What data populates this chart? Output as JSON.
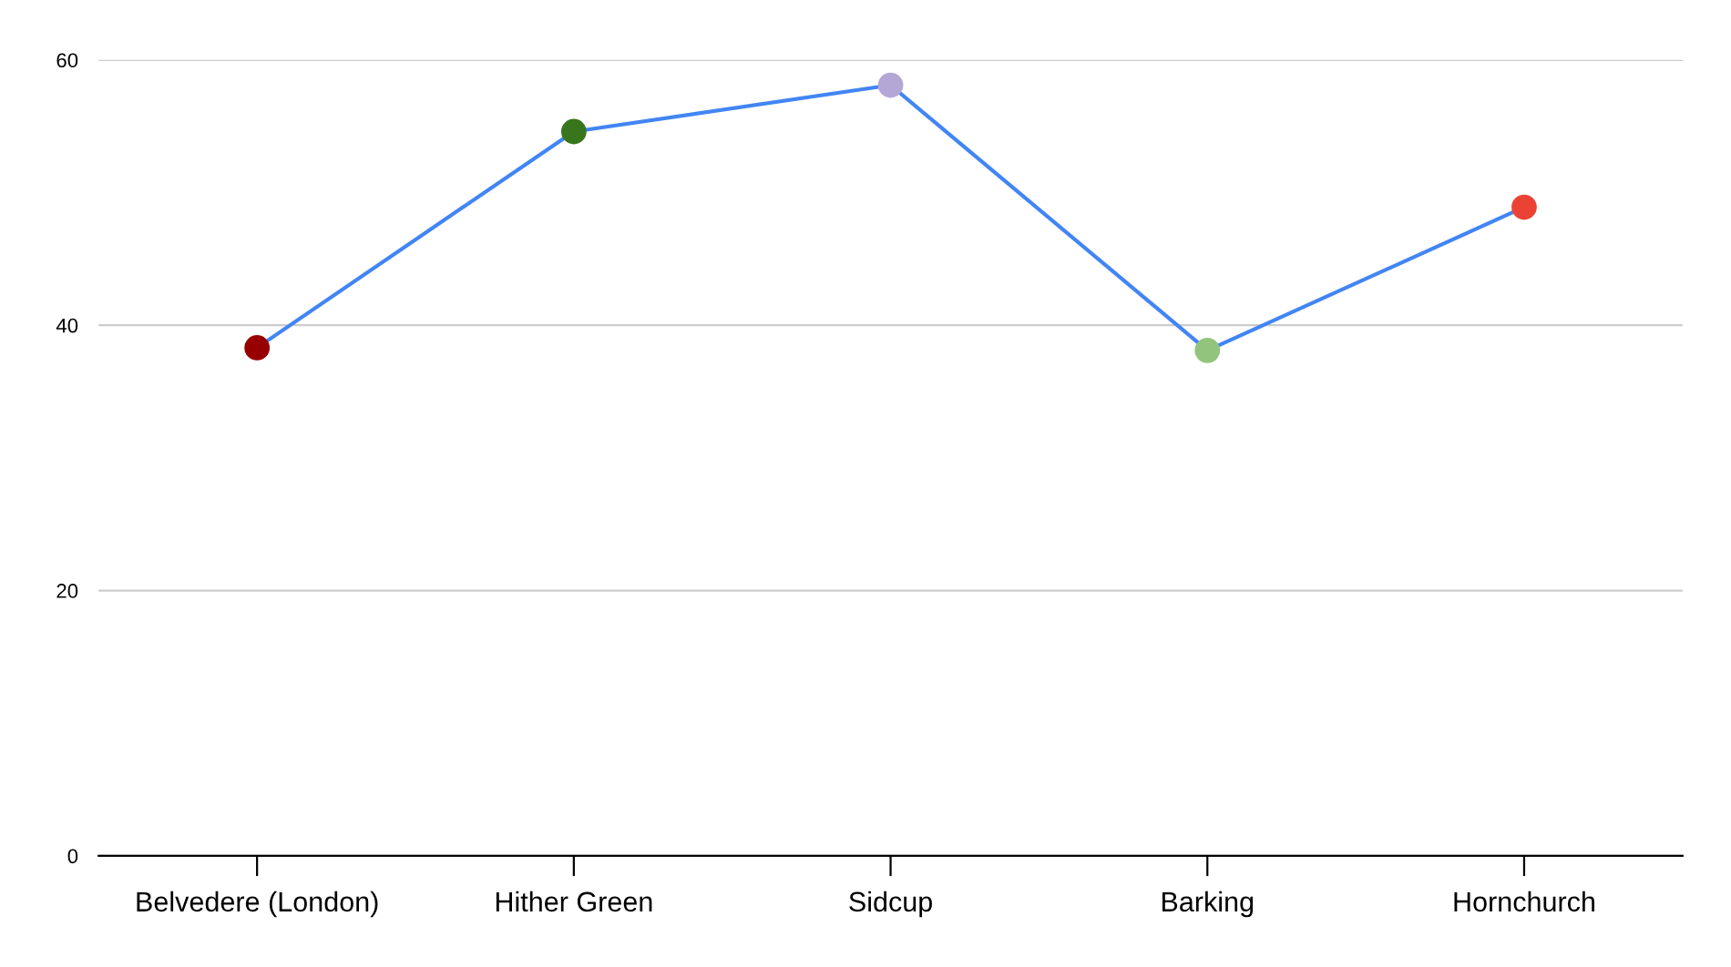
{
  "chart_data": {
    "type": "line",
    "categories": [
      "Belvedere (London)",
      "Hither Green",
      "Sidcup",
      "Barking",
      "Hornchurch"
    ],
    "series": [
      {
        "color": "#4285f4",
        "colors": [
          "#980000",
          "#38761d",
          "#b4a7d6",
          "#93c47d",
          "#ea4335"
        ],
        "values": [
          38.3,
          54.6,
          58.1,
          38.1,
          48.9
        ]
      }
    ],
    "ylim": [
      0,
      60
    ],
    "yticks": [
      0,
      20,
      40,
      60
    ],
    "grid": "y",
    "marker": "circle",
    "line_style": "solid",
    "legend": false
  }
}
